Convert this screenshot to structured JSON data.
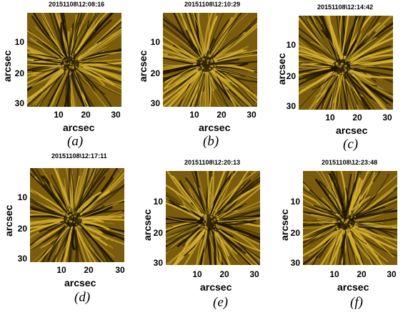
{
  "panels": [
    {
      "id": "a",
      "timestamp": "20151108\\12:08:16",
      "caption": "(a)",
      "ylabel": "arcsec",
      "xlabel": "arcsec",
      "yticks": [
        "10",
        "20",
        "30"
      ],
      "xticks": [
        "10",
        "20",
        "30"
      ]
    },
    {
      "id": "b",
      "timestamp": "20151108\\12:10:29",
      "caption": "(b)",
      "ylabel": "arcsec",
      "xlabel": "arcsec",
      "yticks": [
        "10",
        "20",
        "30"
      ],
      "xticks": [
        "10",
        "20",
        "30"
      ]
    },
    {
      "id": "c",
      "timestamp": "20151108\\12:14:42",
      "caption": "(c)",
      "ylabel": "arcsec",
      "xlabel": "arcsec",
      "yticks": [
        "10",
        "20",
        "30"
      ],
      "xticks": [
        "10",
        "20",
        "30"
      ]
    },
    {
      "id": "d",
      "timestamp": "20151108\\12:17:11",
      "caption": "(d)",
      "ylabel": "arcsec",
      "xlabel": "arcsec",
      "yticks": [
        "10",
        "20",
        "30"
      ],
      "xticks": [
        "10",
        "20",
        "30"
      ]
    },
    {
      "id": "e",
      "timestamp": "20151108\\12:20:13",
      "caption": "(e)",
      "ylabel": "arcsec",
      "xlabel": "arcsec",
      "yticks": [
        "10",
        "20",
        "30"
      ],
      "xticks": [
        "10",
        "20",
        "30"
      ]
    },
    {
      "id": "f",
      "timestamp": "20151108\\12:23:48",
      "caption": "(f)",
      "ylabel": "arcsec",
      "xlabel": "arcsec",
      "yticks": [
        "10",
        "20",
        "30"
      ],
      "xticks": [
        "10",
        "20",
        "30"
      ]
    }
  ],
  "colors": {
    "image_bright": "#d4b030",
    "image_mid": "#7a5c0c",
    "image_dark": "#1a1200",
    "background": "#ffffff"
  }
}
